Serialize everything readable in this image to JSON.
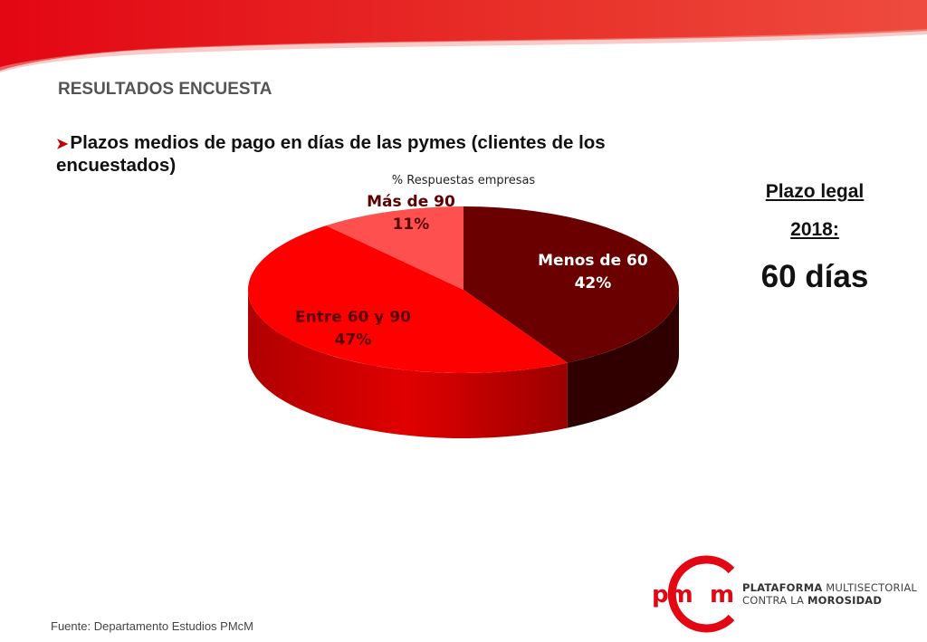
{
  "slide": {
    "heading": "RESULTADOS ENCUESTA",
    "bullet": "Plazos medios de pago en días de las pymes (clientes de los encuestados)",
    "source": "Fuente: Departamento Estudios PMcM"
  },
  "legal": {
    "line1": "Plazo legal",
    "line2": "2018:",
    "value": "60 días"
  },
  "logo": {
    "mark": "PMcM",
    "line1_bold": "PLATAFORMA",
    "line1_rest": " MULTISECTORIAL",
    "line2_rest": "CONTRA LA ",
    "line2_bold": "MOROSIDAD"
  },
  "colors": {
    "brand_red": "#e30613",
    "menos60": "#6b0000",
    "entre60y90": "#ff0000",
    "mas90": "#ff5050"
  },
  "chart_data": {
    "type": "pie",
    "title": "% Respuestas empresas",
    "style": "3d",
    "slices": [
      {
        "label": "Menos de 60",
        "value": 42,
        "display": "42%",
        "color": "#6b0000",
        "text_color": "#ffffff"
      },
      {
        "label": "Entre 60 y 90",
        "value": 47,
        "display": "47%",
        "color": "#ff0000",
        "text_color": "#5a0000"
      },
      {
        "label": "Más de 90",
        "value": 11,
        "display": "11%",
        "color": "#ff5050",
        "text_color": "#5a0000"
      }
    ]
  }
}
